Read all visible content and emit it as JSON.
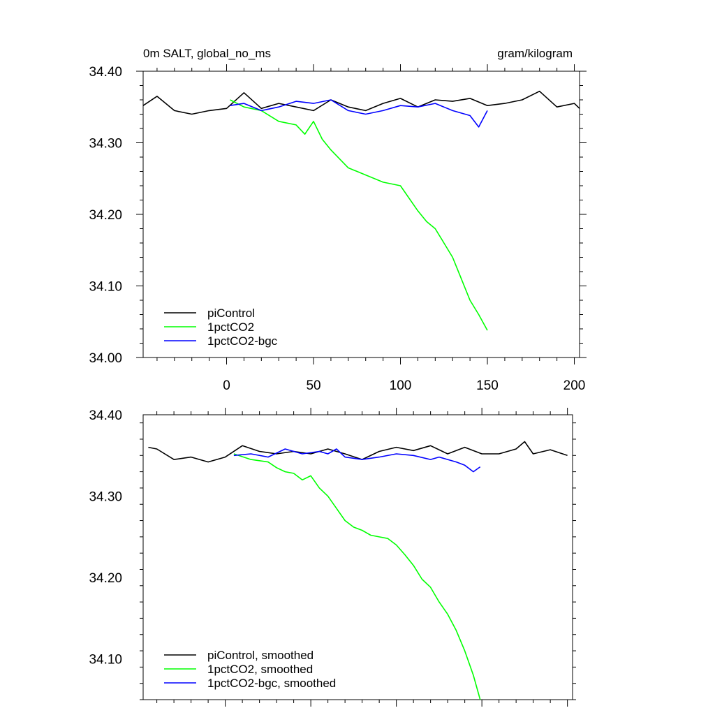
{
  "header": {
    "left_title": "0m SALT, global_no_ms",
    "right_title": "gram/kilogram"
  },
  "chart_data": [
    {
      "type": "line",
      "panel": "top",
      "xlim": [
        -48,
        203
      ],
      "ylim": [
        34.0,
        34.4
      ],
      "x_tick_labels": [
        "0",
        "50",
        "100",
        "150",
        "200"
      ],
      "x_ticks": [
        0,
        50,
        100,
        150,
        200
      ],
      "y_ticks": [
        34.0,
        34.1,
        34.2,
        34.3,
        34.4
      ],
      "y_tick_labels": [
        "34.00",
        "34.10",
        "34.20",
        "34.30",
        "34.40"
      ],
      "grid": false,
      "legend_position": "bottom-left",
      "series": [
        {
          "name": "piControl",
          "color": "#000000",
          "x": [
            -48,
            -40,
            -30,
            -20,
            -10,
            0,
            10,
            20,
            30,
            40,
            50,
            60,
            70,
            80,
            90,
            100,
            110,
            120,
            130,
            140,
            150,
            160,
            170,
            180,
            190,
            200,
            203
          ],
          "y": [
            34.352,
            34.365,
            34.345,
            34.34,
            34.345,
            34.348,
            34.37,
            34.348,
            34.355,
            34.35,
            34.345,
            34.36,
            34.35,
            34.345,
            34.355,
            34.362,
            34.35,
            34.36,
            34.358,
            34.362,
            34.352,
            34.355,
            34.36,
            34.372,
            34.35,
            34.355,
            34.348
          ]
        },
        {
          "name": "1pctCO2",
          "color": "#00ff00",
          "x": [
            2,
            10,
            20,
            30,
            40,
            45,
            50,
            55,
            60,
            70,
            80,
            90,
            100,
            110,
            115,
            120,
            125,
            130,
            135,
            140,
            145,
            150
          ],
          "y": [
            34.36,
            34.35,
            34.345,
            34.33,
            34.325,
            34.312,
            34.33,
            34.305,
            34.29,
            34.265,
            34.255,
            34.245,
            34.24,
            34.205,
            34.19,
            34.18,
            34.16,
            34.14,
            34.11,
            34.08,
            34.06,
            34.038
          ]
        },
        {
          "name": "1pctCO2-bgc",
          "color": "#0000ff",
          "x": [
            2,
            10,
            20,
            30,
            40,
            50,
            60,
            70,
            80,
            90,
            100,
            110,
            120,
            130,
            140,
            145,
            150
          ],
          "y": [
            34.352,
            34.355,
            34.345,
            34.35,
            34.358,
            34.355,
            34.36,
            34.345,
            34.34,
            34.345,
            34.352,
            34.35,
            34.355,
            34.345,
            34.338,
            34.322,
            34.345
          ]
        }
      ]
    },
    {
      "type": "line",
      "panel": "bottom",
      "xlim": [
        -48,
        203
      ],
      "ylim": [
        34.05,
        34.4
      ],
      "x_ticks": [
        0,
        50,
        100,
        150,
        200
      ],
      "y_ticks": [
        34.1,
        34.2,
        34.3,
        34.4
      ],
      "y_tick_labels": [
        "34.10",
        "34.20",
        "34.30",
        "34.40"
      ],
      "grid": false,
      "legend_position": "bottom-left",
      "series": [
        {
          "name": "piControl, smoothed",
          "color": "#000000",
          "x": [
            -45,
            -40,
            -30,
            -20,
            -10,
            0,
            10,
            20,
            30,
            40,
            50,
            60,
            70,
            80,
            90,
            100,
            110,
            120,
            130,
            140,
            150,
            160,
            170,
            175,
            180,
            190,
            200
          ],
          "y": [
            34.36,
            34.358,
            34.345,
            34.348,
            34.342,
            34.348,
            34.362,
            34.355,
            34.352,
            34.355,
            34.352,
            34.358,
            34.352,
            34.345,
            34.355,
            34.36,
            34.356,
            34.362,
            34.352,
            34.36,
            34.352,
            34.352,
            34.358,
            34.367,
            34.352,
            34.357,
            34.35
          ]
        },
        {
          "name": "1pctCO2, smoothed",
          "color": "#00ff00",
          "x": [
            5,
            15,
            25,
            30,
            35,
            40,
            45,
            50,
            55,
            60,
            65,
            70,
            75,
            80,
            85,
            90,
            95,
            100,
            105,
            110,
            115,
            120,
            125,
            130,
            135,
            140,
            145,
            149
          ],
          "y": [
            34.352,
            34.345,
            34.342,
            34.335,
            34.33,
            34.328,
            34.32,
            34.325,
            34.31,
            34.3,
            34.285,
            34.27,
            34.262,
            34.258,
            34.252,
            34.25,
            34.248,
            34.24,
            34.228,
            34.215,
            34.198,
            34.188,
            34.17,
            34.155,
            34.135,
            34.11,
            34.08,
            34.05
          ]
        },
        {
          "name": "1pctCO2-bgc, smoothed",
          "color": "#0000ff",
          "x": [
            5,
            15,
            25,
            35,
            45,
            55,
            60,
            65,
            70,
            80,
            90,
            100,
            110,
            120,
            125,
            130,
            135,
            140,
            145,
            149
          ],
          "y": [
            34.35,
            34.352,
            34.348,
            34.358,
            34.352,
            34.355,
            34.352,
            34.358,
            34.348,
            34.345,
            34.348,
            34.352,
            34.35,
            34.345,
            34.348,
            34.345,
            34.342,
            34.338,
            34.33,
            34.336
          ]
        }
      ]
    }
  ]
}
